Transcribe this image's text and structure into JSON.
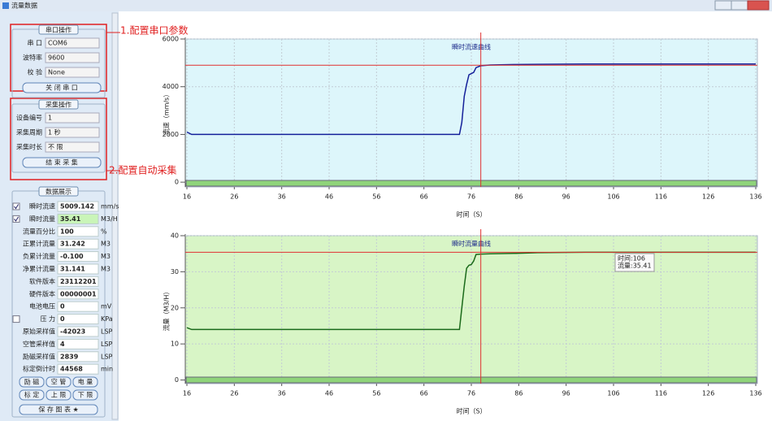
{
  "window": {
    "title": "流量数据"
  },
  "annotations": [
    "1.配置串口参数",
    "2.配置自动采集"
  ],
  "serial": {
    "title": "串口操作",
    "fields": [
      {
        "label": "串 口",
        "value": "COM6"
      },
      {
        "label": "波特率",
        "value": "9600"
      },
      {
        "label": "校 验",
        "value": "None"
      }
    ],
    "button": "关 闭 串 口"
  },
  "acquisition": {
    "title": "采集操作",
    "fields": [
      {
        "label": "设备编号",
        "value": "1"
      },
      {
        "label": "采集周期",
        "value": "1 秒"
      },
      {
        "label": "采集时长",
        "value": "不 限"
      }
    ],
    "button": "结 束 采 集"
  },
  "display": {
    "title": "数据展示",
    "rows": [
      {
        "label": "瞬时流速",
        "value": "5009.142",
        "unit": "mm/s",
        "checked": true
      },
      {
        "label": "瞬时流量",
        "value": "35.41",
        "unit": "M3/H",
        "checked": true
      },
      {
        "label": "流量百分比",
        "value": "100",
        "unit": "%"
      },
      {
        "label": "正累计流量",
        "value": "31.242",
        "unit": "M3"
      },
      {
        "label": "负累计流量",
        "value": "-0.100",
        "unit": "M3"
      },
      {
        "label": "净累计流量",
        "value": "31.141",
        "unit": "M3"
      },
      {
        "label": "软件版本",
        "value": "23112201"
      },
      {
        "label": "硬件版本",
        "value": "00000001"
      },
      {
        "label": "电池电压",
        "value": "0",
        "unit": "mV"
      },
      {
        "label": "压 力",
        "value": "0",
        "unit": "KPa",
        "checked": false
      },
      {
        "label": "原始采样值",
        "value": "-42023",
        "unit": "LSP"
      },
      {
        "label": "空管采样值",
        "value": "4",
        "unit": "LSP"
      },
      {
        "label": "励磁采样值",
        "value": "2839",
        "unit": "LSP"
      },
      {
        "label": "标定倒计时",
        "value": "44568",
        "unit": "min"
      }
    ],
    "buttons": [
      "励 磁",
      "空 管",
      "电 量",
      "标 定",
      "上 限",
      "下 限"
    ],
    "save": "保 存 图 表 ★"
  },
  "chart_data": [
    {
      "type": "line",
      "title": "瞬时流速曲线",
      "x_label": "时间（S）",
      "y_label": "流速（mm/s）",
      "background": "#ddf6fb",
      "x": [
        16,
        17,
        20,
        30,
        40,
        50,
        60,
        70,
        73,
        73.5,
        74,
        74.5,
        75,
        75.5,
        76,
        76.5,
        77,
        78,
        80,
        85,
        90,
        100,
        110,
        120,
        130,
        136
      ],
      "series": [
        {
          "color": "#14209a",
          "values": [
            2100,
            2000,
            2000,
            2000,
            2000,
            2000,
            2000,
            2000,
            2000,
            2000,
            2500,
            3600,
            4100,
            4500,
            4550,
            4600,
            4800,
            4880,
            4910,
            4930,
            4940,
            4950,
            4950,
            4950,
            4950,
            4950
          ]
        }
      ],
      "xlim": [
        16,
        136
      ],
      "xticks": [
        16,
        26,
        36,
        46,
        56,
        66,
        76,
        86,
        96,
        106,
        116,
        126,
        136
      ],
      "ylim": [
        -200,
        6000
      ],
      "yticks": [
        0,
        2000,
        4000,
        6000
      ],
      "grid": true,
      "crosshair": {
        "x": 78,
        "y": 4900
      }
    },
    {
      "type": "line",
      "title": "瞬时流量曲线",
      "x_label": "时间（S）",
      "y_label": "流量（M3/H）",
      "background": "#d8f5c6",
      "x": [
        16,
        17,
        20,
        30,
        40,
        50,
        60,
        70,
        73,
        73.5,
        74,
        74.5,
        75,
        75.5,
        76,
        76.5,
        77,
        78,
        80,
        85,
        90,
        100,
        110,
        120,
        130,
        136
      ],
      "series": [
        {
          "color": "#1a6a1a",
          "values": [
            14.5,
            14,
            14,
            14,
            14,
            14,
            14,
            14,
            14,
            14,
            20,
            26,
            31,
            31.8,
            32,
            33,
            34.8,
            34.9,
            35,
            35.1,
            35.3,
            35.4,
            35.41,
            35.41,
            35.41,
            35.41
          ]
        }
      ],
      "xlim": [
        16,
        136
      ],
      "xticks": [
        16,
        26,
        36,
        46,
        56,
        66,
        76,
        86,
        96,
        106,
        116,
        126,
        136
      ],
      "ylim": [
        -1,
        40
      ],
      "yticks": [
        0,
        10,
        20,
        30,
        40
      ],
      "grid": true,
      "crosshair": {
        "x": 78,
        "y": 35.41
      },
      "tooltip": [
        "时间:106",
        "流量:35.41"
      ]
    }
  ]
}
